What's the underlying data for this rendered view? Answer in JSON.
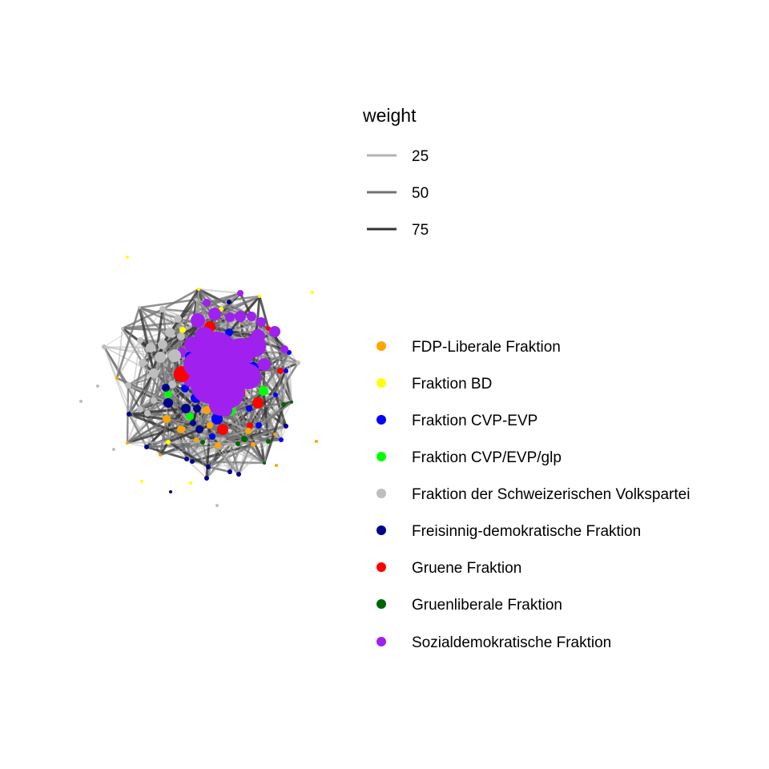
{
  "weight_legend": {
    "title": "weight",
    "entries": [
      {
        "label": "25",
        "color": "#b3b3b3"
      },
      {
        "label": "50",
        "color": "#737373"
      },
      {
        "label": "75",
        "color": "#333333"
      }
    ]
  },
  "party_legend": {
    "entries": [
      {
        "id": "fdp",
        "label": "FDP-Liberale Fraktion",
        "color": "#FFA500"
      },
      {
        "id": "bd",
        "label": "Fraktion BD",
        "color": "#FFFF00"
      },
      {
        "id": "cvp",
        "label": "Fraktion CVP-EVP",
        "color": "#0000FF"
      },
      {
        "id": "cvpglp",
        "label": "Fraktion CVP/EVP/glp",
        "color": "#00FF00"
      },
      {
        "id": "svp",
        "label": "Fraktion der Schweizerischen Volkspartei",
        "color": "#BEBEBE"
      },
      {
        "id": "fdpd",
        "label": "Freisinnig-demokratische Fraktion",
        "color": "#00008B"
      },
      {
        "id": "gruene",
        "label": "Gruene Fraktion",
        "color": "#FF0000"
      },
      {
        "id": "glp",
        "label": "Gruenliberale Fraktion",
        "color": "#006400"
      },
      {
        "id": "sp",
        "label": "Sozialdemokratische Fraktion",
        "color": "#A020F0"
      }
    ]
  }
}
